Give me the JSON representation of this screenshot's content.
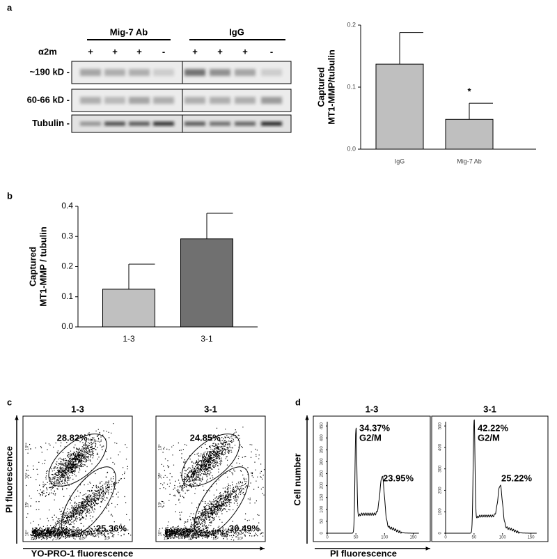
{
  "panel_labels": [
    "a",
    "b",
    "c",
    "d"
  ],
  "blot": {
    "groups": [
      "Mig-7 Ab",
      "IgG"
    ],
    "row_label": "α2m",
    "signs": [
      "+",
      "+",
      "+",
      "-",
      "+",
      "+",
      "+",
      "-"
    ],
    "bands": [
      "~190 kD -",
      "60-66 kD -",
      "Tubulin -"
    ]
  },
  "chart_data": [
    {
      "type": "bar",
      "ylabel": [
        "Captured",
        "MT1-MMP/tubulin"
      ],
      "categories": [
        "IgG",
        "Mig-7 Ab"
      ],
      "values": [
        0.137,
        0.048
      ],
      "errors": [
        0.051,
        0.026
      ],
      "annotations": [
        null,
        "*"
      ],
      "colors": [
        "#bfbfbf",
        "#bfbfbf"
      ],
      "ylim": [
        0,
        0.2
      ],
      "yticks": [
        {
          "value": 0,
          "label": "0.0"
        },
        0.1,
        0.2
      ]
    },
    {
      "type": "bar",
      "ylabel": [
        "Captured",
        "MT1-MMP / tubulin"
      ],
      "categories": [
        "1-3",
        "3-1"
      ],
      "values": [
        0.125,
        0.292
      ],
      "errors": [
        0.083,
        0.085
      ],
      "annotations": [
        null,
        null
      ],
      "colors": [
        "#c0c0c0",
        "#707070"
      ],
      "ylim": [
        0,
        0.4
      ],
      "yticks": [
        {
          "value": 0,
          "label": "0.0"
        },
        0.1,
        0.2,
        0.3,
        0.4
      ]
    }
  ],
  "flow": {
    "ylabel": "PI fluorescence",
    "xlabel": "YO-PRO-1 fluorescence",
    "ticks": [
      {
        "value": 0,
        "label": "10⁰"
      },
      {
        "value": 1,
        "label": "10¹"
      },
      {
        "value": 2,
        "label": "10²"
      },
      {
        "value": 3,
        "label": "10³"
      }
    ],
    "samples": [
      {
        "title": "1-3",
        "upper": "28.82%",
        "lower": "25.36%"
      },
      {
        "title": "3-1",
        "upper": "24.85%",
        "lower": "30.49%"
      }
    ]
  },
  "cell_cycle": {
    "ylabel": "Cell number",
    "xlabel": "PI fluorescence",
    "xticks": [
      0,
      50,
      100,
      150
    ],
    "samples": [
      {
        "title": "1-3",
        "peak": "34.37%",
        "phase": "G2/M",
        "sub": "23.95%",
        "yticks": [
          0,
          50,
          100,
          150,
          200,
          250,
          300,
          350,
          400,
          450
        ]
      },
      {
        "title": "3-1",
        "peak": "42.22%",
        "phase": "G2/M",
        "sub": "25.22%",
        "yticks": [
          0,
          100,
          200,
          300,
          400,
          500
        ]
      }
    ]
  }
}
